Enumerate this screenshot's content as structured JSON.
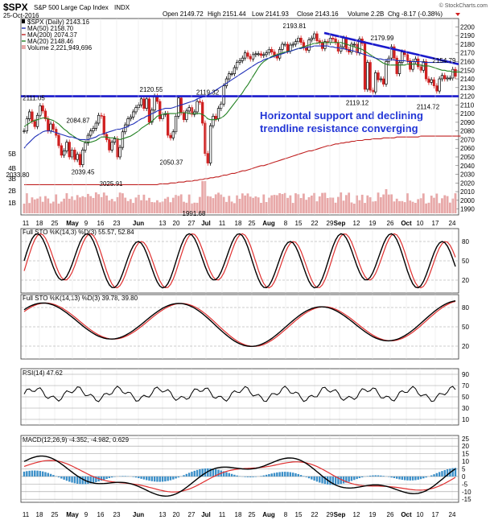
{
  "header": {
    "symbol": "$SPX",
    "name": "S&P 500 Large Cap Index",
    "exchange": "INDX",
    "date": "25-Oct-2016",
    "open": "Open 2149.72",
    "high": "High 2151.44",
    "low": "Low 2141.93",
    "close": "Close 2143.16",
    "volume": "Volume 2.2B",
    "chg": "Chg -8.17 (-0.38%)",
    "chg_arrow": "down-arrow-icon",
    "source": "© StockCharts.com"
  },
  "main_panel": {
    "legend": [
      {
        "text": "$SPX (Daily) 2143.16",
        "color": "#000000"
      },
      {
        "text": "MA(50) 2158.70",
        "color": "#1f2fb8"
      },
      {
        "text": "MA(200) 2074.37",
        "color": "#c02020"
      },
      {
        "text": "MA(20) 2148.46",
        "color": "#208020"
      },
      {
        "text": "Volume 2,221,949,696",
        "color": "#888888"
      }
    ],
    "annotation": [
      "Horizontal support and declining",
      "trendline resistance converging"
    ],
    "annotation_color": "#1f33d6"
  },
  "x_labels": [
    "11",
    "18",
    "25",
    "May",
    "9",
    "16",
    "23",
    "Jun",
    "13",
    "20",
    "27",
    "Jul",
    "11",
    "18",
    "25",
    "Aug",
    "8",
    "15",
    "22",
    "29",
    "Sep",
    "12",
    "19",
    "26",
    "Oct",
    "10",
    "17",
    "24"
  ],
  "chart_data": [
    {
      "type": "line",
      "title": "$SPX S&P 500 Large Cap Index INDX",
      "y_ticks": [
        "2200",
        "2190",
        "2180",
        "2170",
        "2160",
        "2150",
        "2140",
        "2130",
        "2120",
        "2110",
        "2100",
        "2090",
        "2080",
        "2070",
        "2060",
        "2050",
        "2040",
        "2030",
        "2020",
        "2010",
        "2000",
        "1990"
      ],
      "ylim": [
        1985,
        2205
      ],
      "price_labels": [
        "2111.05",
        "2120.55",
        "2084.87",
        "2039.45",
        "2025.91",
        "2050.37",
        "2119.32",
        "1991.68",
        "2193.81",
        "2179.99",
        "2154.79",
        "2119.12",
        "2114.72",
        "2033.80"
      ],
      "volume_ticks": [
        "5B",
        "4B",
        "3B",
        "2B",
        "1B"
      ],
      "series": [
        {
          "name": "$SPX (Daily)",
          "key": "close",
          "values": [
            2080,
            2094,
            2102,
            2091,
            2085,
            2098,
            2109,
            2103,
            2094,
            2080,
            2088,
            2082,
            2075,
            2063,
            2052,
            2057,
            2067,
            2050,
            2058,
            2047,
            2053,
            2041,
            2058,
            2066,
            2075,
            2080,
            2083,
            2089,
            2098,
            2097,
            2076,
            2070,
            2058,
            2067,
            2071,
            2050,
            2061,
            2079,
            2087,
            2094,
            2096,
            2102,
            2107,
            2110,
            2117,
            2106,
            2117,
            2090,
            2104,
            2120,
            2114,
            2094,
            2099,
            2100,
            2075,
            2072,
            2079,
            2097,
            2118,
            2101,
            2093,
            2103,
            2107,
            2099,
            2102,
            2114,
            2113,
            2089,
            2054,
            2043,
            2086,
            2097,
            2094,
            2106,
            2111,
            2132,
            2140,
            2146,
            2146,
            2153,
            2159,
            2161,
            2164,
            2170,
            2166,
            2163,
            2168,
            2169,
            2169,
            2167,
            2168,
            2170,
            2174,
            2171,
            2167,
            2164,
            2174,
            2180,
            2180,
            2172,
            2179,
            2180,
            2183,
            2187,
            2182,
            2176,
            2173,
            2185,
            2187,
            2192,
            2184,
            2182,
            2175,
            2183,
            2182,
            2187,
            2186,
            2182,
            2172,
            2177,
            2187,
            2174,
            2171,
            2180,
            2180,
            2170,
            2186,
            2181,
            2128,
            2159,
            2127,
            2125,
            2147,
            2139,
            2140,
            2134,
            2160,
            2164,
            2177,
            2164,
            2146,
            2159,
            2171,
            2168,
            2161,
            2151,
            2160,
            2163,
            2154,
            2150,
            2160,
            2140,
            2136,
            2139,
            2132,
            2126,
            2140,
            2144,
            2140,
            2141,
            2141,
            2151,
            2143
          ]
        },
        {
          "name": "MA(50)",
          "values": [
            2060,
            2064,
            2067,
            2070,
            2073,
            2075,
            2077,
            2079,
            2080,
            2080,
            2080,
            2079,
            2078,
            2077,
            2076,
            2075,
            2074,
            2073,
            2073,
            2072,
            2071,
            2070,
            2070,
            2070,
            2070,
            2071,
            2072,
            2073,
            2075,
            2076,
            2077,
            2078,
            2079,
            2080,
            2081,
            2082,
            2082,
            2083,
            2084,
            2085,
            2087,
            2088,
            2090,
            2092,
            2094,
            2095,
            2097,
            2098,
            2100,
            2101,
            2103,
            2104,
            2105,
            2106,
            2106,
            2106,
            2107,
            2108,
            2109,
            2110,
            2111,
            2112,
            2113,
            2114,
            2115,
            2117,
            2118,
            2119,
            2120,
            2121,
            2123,
            2125,
            2127,
            2129,
            2131,
            2133,
            2135,
            2137,
            2139,
            2141,
            2143,
            2145,
            2147,
            2149,
            2151,
            2153,
            2155,
            2157,
            2159,
            2160,
            2162,
            2163,
            2164,
            2165,
            2166,
            2167,
            2168,
            2169,
            2170,
            2171,
            2172,
            2173,
            2174,
            2175,
            2175,
            2176,
            2176,
            2177,
            2177,
            2178,
            2178,
            2178,
            2178,
            2178,
            2178,
            2177,
            2177,
            2176,
            2176,
            2175,
            2175,
            2174,
            2173,
            2173,
            2172,
            2171,
            2170,
            2169,
            2168,
            2167,
            2166,
            2165,
            2164,
            2163,
            2163,
            2162,
            2162,
            2162,
            2162,
            2162,
            2161,
            2161,
            2161,
            2161,
            2160,
            2160,
            2160,
            2160,
            2160,
            2160,
            2159,
            2159,
            2159,
            2159,
            2159,
            2159,
            2159,
            2159,
            2159,
            2159,
            2159,
            2159
          ]
        },
        {
          "name": "MA(200)",
          "values": [
            2018,
            2018,
            2018,
            2018,
            2018,
            2018,
            2018,
            2018,
            2018,
            2018,
            2018,
            2018,
            2018,
            2018,
            2018,
            2018,
            2018,
            2018,
            2018,
            2018,
            2018,
            2018,
            2018,
            2018,
            2018,
            2018,
            2018,
            2018,
            2018,
            2018,
            2018,
            2018,
            2018,
            2018,
            2018,
            2018,
            2018,
            2018,
            2018,
            2018,
            2018,
            2018,
            2018,
            2018,
            2018,
            2018,
            2018,
            2018,
            2018,
            2018,
            2018,
            2019,
            2019,
            2019,
            2019,
            2020,
            2020,
            2020,
            2021,
            2021,
            2021,
            2022,
            2022,
            2022,
            2023,
            2023,
            2024,
            2024,
            2025,
            2025,
            2026,
            2026,
            2027,
            2027,
            2028,
            2029,
            2029,
            2030,
            2031,
            2031,
            2032,
            2033,
            2034,
            2034,
            2035,
            2036,
            2037,
            2038,
            2039,
            2040,
            2040,
            2041,
            2042,
            2043,
            2044,
            2045,
            2046,
            2047,
            2048,
            2049,
            2050,
            2051,
            2052,
            2053,
            2054,
            2055,
            2056,
            2057,
            2057,
            2058,
            2059,
            2060,
            2061,
            2062,
            2063,
            2063,
            2064,
            2065,
            2065,
            2066,
            2066,
            2067,
            2067,
            2068,
            2068,
            2069,
            2069,
            2069,
            2070,
            2070,
            2070,
            2071,
            2071,
            2071,
            2071,
            2072,
            2072,
            2072,
            2072,
            2072,
            2073,
            2073,
            2073,
            2073,
            2073,
            2073,
            2073,
            2073,
            2073,
            2074,
            2074,
            2074,
            2074,
            2074,
            2074,
            2074,
            2074,
            2074,
            2074,
            2074,
            2074,
            2074,
            2074,
            2074,
            2074
          ]
        },
        {
          "name": "MA(20)",
          "values": [
            2085,
            2087,
            2089,
            2091,
            2092,
            2093,
            2094,
            2095,
            2095,
            2094,
            2093,
            2092,
            2090,
            2088,
            2085,
            2082,
            2080,
            2077,
            2075,
            2073,
            2071,
            2069,
            2068,
            2067,
            2067,
            2067,
            2068,
            2069,
            2071,
            2073,
            2073,
            2073,
            2072,
            2072,
            2072,
            2071,
            2070,
            2071,
            2072,
            2073,
            2074,
            2076,
            2078,
            2080,
            2083,
            2085,
            2087,
            2089,
            2091,
            2094,
            2097,
            2098,
            2099,
            2100,
            2100,
            2100,
            2100,
            2100,
            2101,
            2101,
            2101,
            2101,
            2100,
            2100,
            2100,
            2100,
            2100,
            2099,
            2097,
            2094,
            2093,
            2093,
            2093,
            2094,
            2095,
            2097,
            2100,
            2104,
            2108,
            2112,
            2116,
            2120,
            2124,
            2129,
            2133,
            2138,
            2143,
            2148,
            2153,
            2157,
            2160,
            2162,
            2164,
            2166,
            2167,
            2168,
            2169,
            2170,
            2171,
            2172,
            2172,
            2173,
            2174,
            2175,
            2176,
            2177,
            2178,
            2179,
            2180,
            2181,
            2181,
            2182,
            2182,
            2182,
            2182,
            2182,
            2182,
            2182,
            2182,
            2182,
            2181,
            2180,
            2179,
            2178,
            2177,
            2176,
            2175,
            2174,
            2172,
            2170,
            2168,
            2166,
            2164,
            2162,
            2160,
            2158,
            2157,
            2156,
            2156,
            2156,
            2156,
            2156,
            2156,
            2156,
            2157,
            2157,
            2157,
            2157,
            2156,
            2156,
            2155,
            2155,
            2155,
            2154,
            2153,
            2152,
            2151,
            2150,
            2150,
            2149,
            2149,
            2148,
            2148,
            2148,
            2148
          ]
        }
      ],
      "horizontal_support": 2120,
      "trendline": [
        [
          2193,
          2154
        ]
      ]
    },
    {
      "type": "line",
      "title": "Full STO %K(14,3) %D(3) 55.57, 52.84",
      "ylim": [
        0,
        100
      ],
      "y_ticks": [
        "80",
        "50",
        "20"
      ],
      "series": [
        {
          "name": "%K(14,3)",
          "value": 55.57
        },
        {
          "name": "%D(3)",
          "value": 52.84
        }
      ]
    },
    {
      "type": "line",
      "title": "Full STO %K(14,13) %D(3) 39.78, 39.80",
      "ylim": [
        0,
        100
      ],
      "y_ticks": [
        "80",
        "50",
        "20"
      ],
      "series": [
        {
          "name": "%K(14,13)",
          "value": 39.78
        },
        {
          "name": "%D(3)",
          "value": 39.8
        }
      ]
    },
    {
      "type": "line",
      "title": "RSI(14) 47.62",
      "ylim": [
        0,
        100
      ],
      "y_ticks": [
        "90",
        "70",
        "50",
        "30",
        "10"
      ],
      "series": [
        {
          "name": "RSI(14)",
          "value": 47.62
        }
      ]
    },
    {
      "type": "line",
      "title": "MACD(12,26,9) -4.352, -4.982, 0.629",
      "y_ticks": [
        "25",
        "20",
        "15",
        "10",
        "5",
        "0",
        "-5",
        "-10",
        "-15"
      ],
      "ylim": [
        -17,
        27
      ],
      "series": [
        {
          "name": "MACD(12,26,9)",
          "value": -4.352
        },
        {
          "name": "signal",
          "value": -4.982
        },
        {
          "name": "histogram",
          "value": 0.629
        }
      ]
    }
  ],
  "colors": {
    "price": "#000000",
    "ma50": "#1f2fb8",
    "ma200": "#c02020",
    "ma20": "#208020",
    "support_line": "#1a1acc",
    "up_candle": "#000000",
    "down_candle": "#d02020",
    "volume": "#e8a8a8",
    "sto_k": "#000000",
    "sto_d": "#e03030",
    "rsi": "#000000",
    "macd": "#000000",
    "macd_signal": "#e03030",
    "macd_hist": "#3b8fc8"
  }
}
